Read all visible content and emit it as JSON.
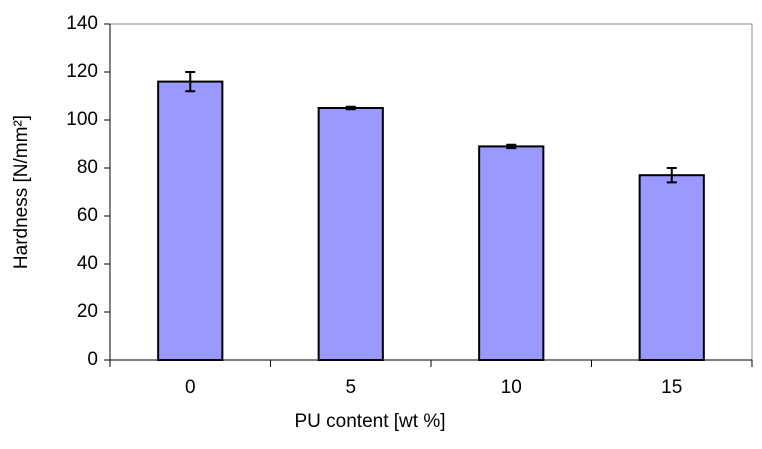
{
  "chart_data": {
    "type": "bar",
    "categories": [
      "0",
      "5",
      "10",
      "15"
    ],
    "values": [
      116,
      105,
      89,
      77
    ],
    "errors": [
      4,
      0.5,
      0.7,
      3
    ],
    "color": "#9999ff",
    "x_label": "PU content [wt %]",
    "y_label": "Hardness [N/mm²]",
    "ylim": [
      0,
      140
    ],
    "yticks": [
      0,
      20,
      40,
      60,
      80,
      100,
      120,
      140
    ],
    "grid": false
  }
}
